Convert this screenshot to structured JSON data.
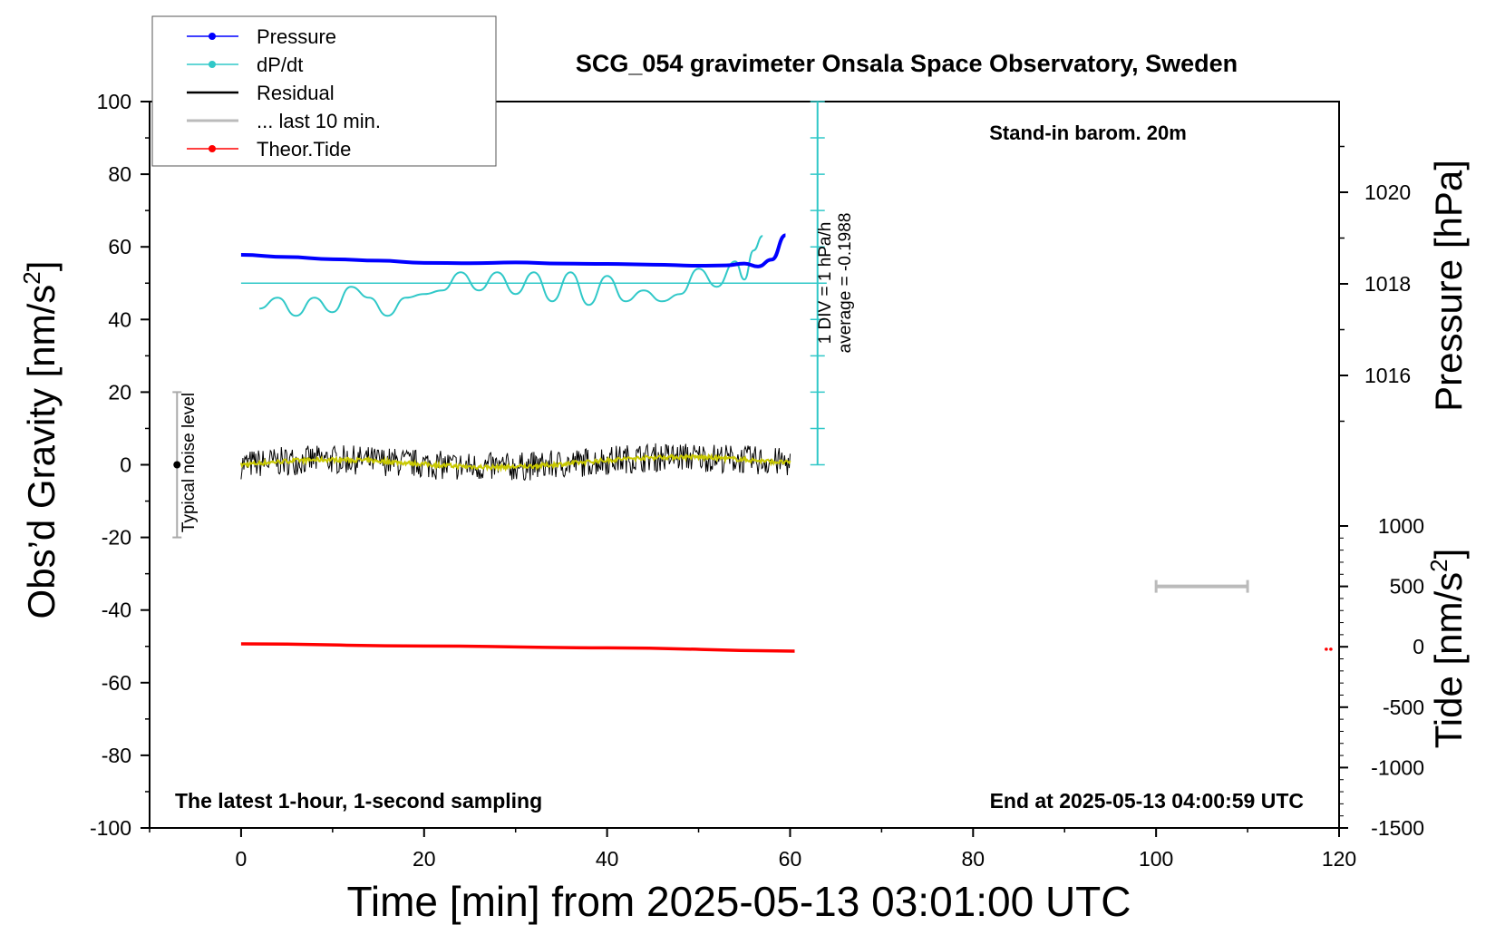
{
  "chart_data": {
    "type": "line",
    "title": "SCG_054 gravimeter Onsala Space Observatory, Sweden",
    "subtitle": "Stand-in barom. 20m",
    "footer_left": "The latest 1-hour, 1-second sampling",
    "footer_right": "End at 2025-05-13 04:00:59 UTC",
    "xlabel": "Time [min] from 2025-05-13 03:01:00 UTC",
    "ylabel_left": "Obs’d Gravity [nm/s",
    "ylabel_left_sup": "2",
    "ylabel_left_end": "]",
    "ylabel_pressure": "Pressure [hPa]",
    "ylabel_tide": "Tide [nm/s",
    "ylabel_tide_sup": "2",
    "ylabel_tide_end": "]",
    "xlim": [
      -10,
      120
    ],
    "ylim": [
      -100,
      100
    ],
    "xticks": [
      "0",
      "20",
      "40",
      "60",
      "80",
      "100",
      "120"
    ],
    "yticks": [
      "100",
      "80",
      "60",
      "40",
      "20",
      "0",
      "-20",
      "-40",
      "-60",
      "-80",
      "-100"
    ],
    "pressure_ticks": [
      "1020",
      "1018",
      "1016"
    ],
    "tide_ticks": [
      "1000",
      "500",
      "0",
      "-500",
      "-1000",
      "-1500"
    ],
    "dpdt_annotation_1": "1 DIV = 1 hPa/h",
    "dpdt_annotation_2": "average = -0.1988",
    "noise_label": "Typical noise level",
    "legend": [
      {
        "label": "Pressure",
        "color": "#0000ff"
      },
      {
        "label": "dP/dt",
        "color": "#30c8c8"
      },
      {
        "label": "Residual",
        "color": "#000000"
      },
      {
        "label": "... last 10 min.",
        "color": "#bbbbbb"
      },
      {
        "label": "Theor.Tide",
        "color": "#ff0000"
      }
    ],
    "series": [
      {
        "name": "Pressure",
        "units": "nm/s2-axis",
        "x": [
          0,
          5,
          10,
          15,
          20,
          25,
          30,
          35,
          40,
          45,
          50,
          53,
          55,
          56.5,
          58,
          59.5
        ],
        "y": [
          57.8,
          57.2,
          56.6,
          56.2,
          55.6,
          55.5,
          55.7,
          55.4,
          55.3,
          55.1,
          54.8,
          54.9,
          55.4,
          54.6,
          56.5,
          63.2
        ]
      },
      {
        "name": "dP/dt",
        "x": [
          2,
          4,
          6,
          8,
          10,
          12,
          14,
          16,
          18,
          20,
          22,
          24,
          26,
          28,
          30,
          32,
          34,
          36,
          38,
          40,
          42,
          44,
          46,
          48,
          50,
          52,
          54,
          55,
          56,
          57
        ],
        "y": [
          43,
          46,
          41,
          46,
          42,
          49,
          46,
          41,
          46,
          47,
          48,
          53,
          48,
          53,
          47,
          53,
          45,
          53,
          44,
          52,
          45,
          48,
          45,
          47,
          54,
          49,
          56,
          51,
          59,
          63
        ]
      },
      {
        "name": "Residual",
        "x_range": [
          0,
          60
        ],
        "y_center": 0,
        "noise_amplitude": 4
      },
      {
        "name": "Theor.Tide",
        "x": [
          0,
          20,
          40,
          60.5
        ],
        "y": [
          -49.3,
          -49.9,
          -50.4,
          -51.3
        ]
      }
    ],
    "dpdt_reference_y": 50,
    "last_10_min_bar": {
      "x": [
        100,
        110
      ],
      "tide": 500
    },
    "noise_bar": {
      "x": -7,
      "y": [
        -20,
        20
      ]
    }
  }
}
